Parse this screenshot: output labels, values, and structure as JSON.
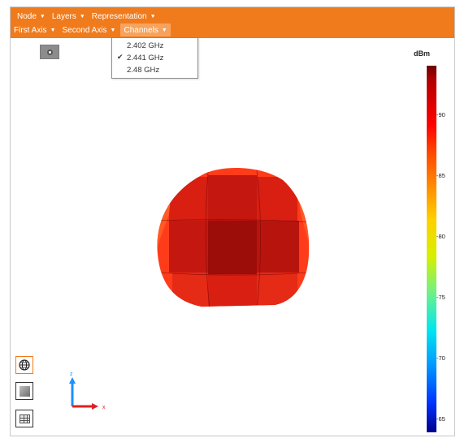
{
  "menu": {
    "row1": [
      {
        "label": "Node",
        "arrow": "▼"
      },
      {
        "label": "Layers",
        "arrow": "▼"
      },
      {
        "label": "Representation",
        "arrow": "▼"
      }
    ],
    "row2": [
      {
        "label": "First Axis",
        "arrow": "▼"
      },
      {
        "label": "Second Axis",
        "arrow": "▼"
      },
      {
        "label": "Channels",
        "arrow": "▼"
      }
    ]
  },
  "channels_dropdown": {
    "items": [
      {
        "label": "2.402 GHz",
        "checked": false
      },
      {
        "label": "2.441 GHz",
        "checked": true,
        "check": "✔"
      },
      {
        "label": "2.48 GHz",
        "checked": false
      }
    ]
  },
  "legend": {
    "title": "dBm",
    "ticks": [
      "-90",
      "-85",
      "-80",
      "-75",
      "-70",
      "-65"
    ],
    "gradient_colors": [
      "#6e0000",
      "#ff0000",
      "#ff8c00",
      "#ffd000",
      "#6ff08a",
      "#00e6f0",
      "#0032ff",
      "#00008c"
    ]
  },
  "axes": {
    "z_label": "z",
    "x_label": "x",
    "z_color": "#1e90ff",
    "x_color": "#e02020"
  },
  "colors": {
    "accent": "#f07b1d",
    "menu_active": "#f6a35e"
  },
  "icons": {
    "camera": "camera-icon",
    "globe": "globe-icon",
    "view": "view-plane-icon",
    "table": "table-icon"
  }
}
